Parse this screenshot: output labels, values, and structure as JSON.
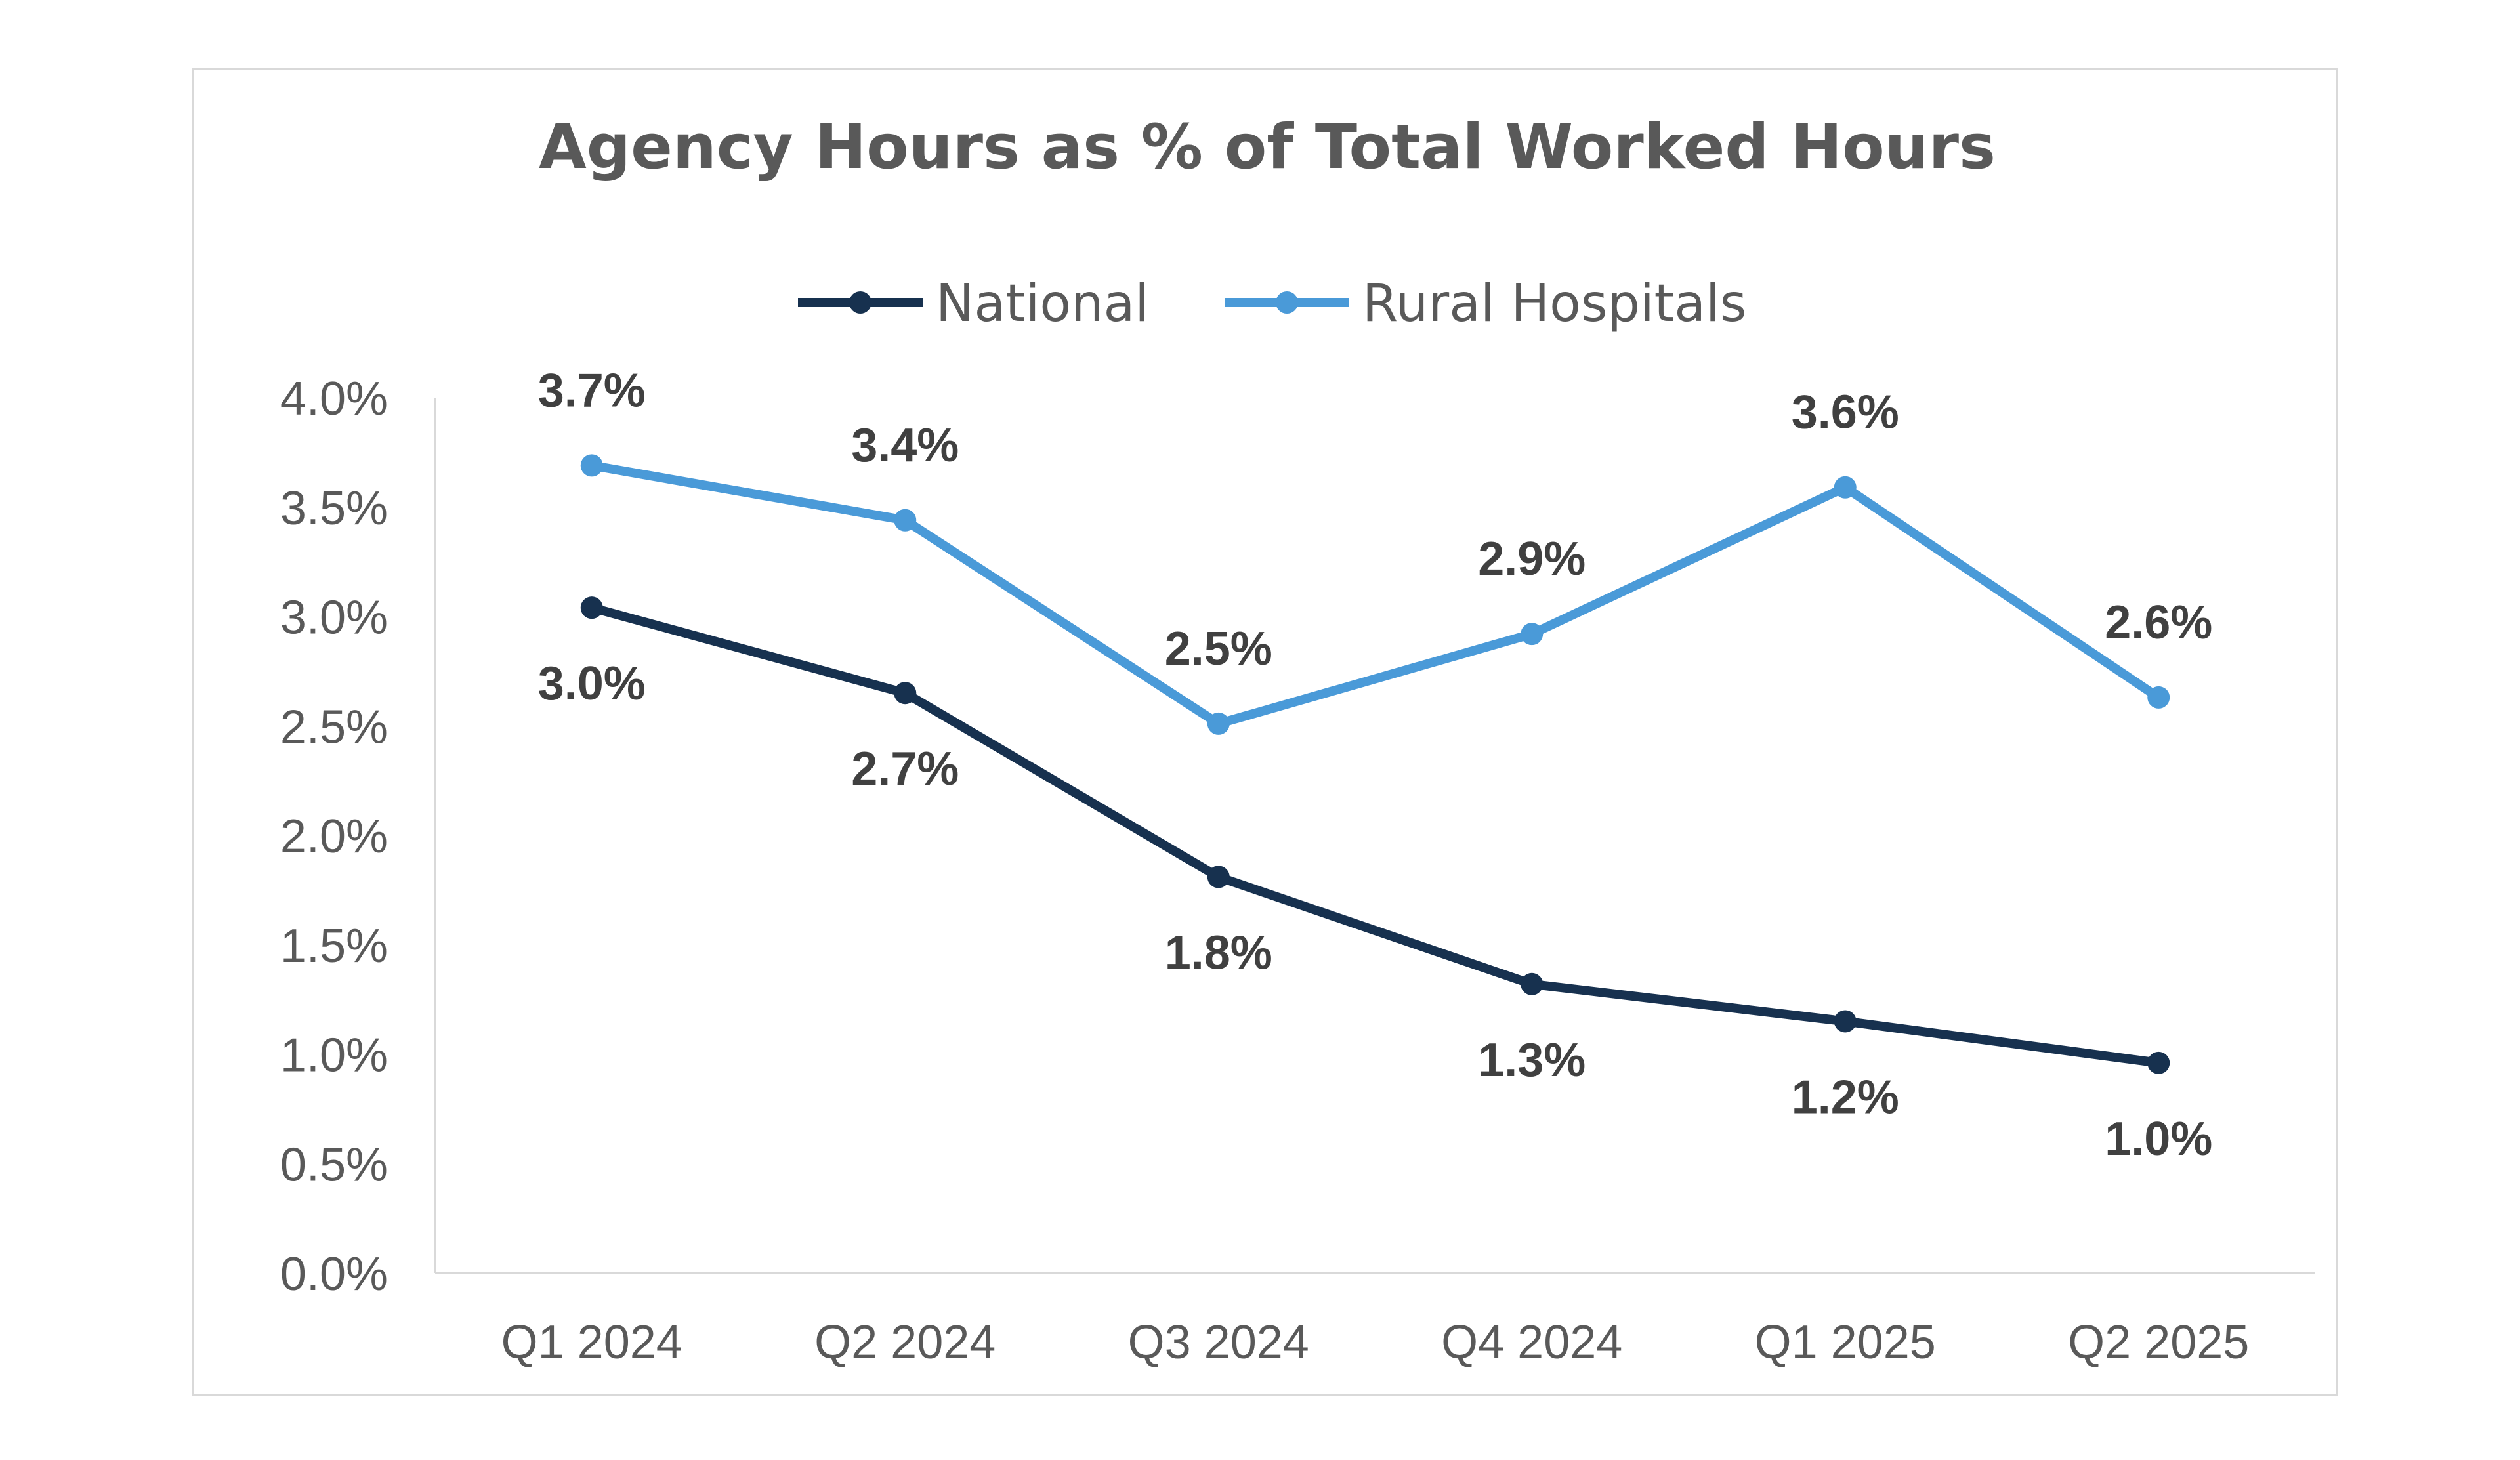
{
  "chart_data": {
    "type": "line",
    "title": "Agency Hours as % of Total Worked Hours",
    "categories": [
      "Q1 2024",
      "Q2 2024",
      "Q3 2024",
      "Q4 2024",
      "Q1 2025",
      "Q2 2025"
    ],
    "series": [
      {
        "name": "National",
        "color": "#17314f",
        "values": [
          3.04,
          2.65,
          1.81,
          1.32,
          1.15,
          0.96
        ],
        "labels": [
          "3.0%",
          "2.7%",
          "1.8%",
          "1.3%",
          "1.2%",
          "1.0%"
        ],
        "label_position": "below"
      },
      {
        "name": "Rural Hospitals",
        "color": "#4a9ad8",
        "values": [
          3.69,
          3.44,
          2.51,
          2.92,
          3.59,
          2.63
        ],
        "labels": [
          "3.7%",
          "3.4%",
          "2.5%",
          "2.9%",
          "3.6%",
          "2.6%"
        ],
        "label_position": "above"
      }
    ],
    "yticks": [
      "0.0%",
      "0.5%",
      "1.0%",
      "1.5%",
      "2.0%",
      "2.5%",
      "3.0%",
      "3.5%",
      "4.0%"
    ],
    "ylim": [
      0,
      4.0
    ],
    "xlabel": "",
    "ylabel": "",
    "legend_position": "top-center",
    "grid": false
  }
}
